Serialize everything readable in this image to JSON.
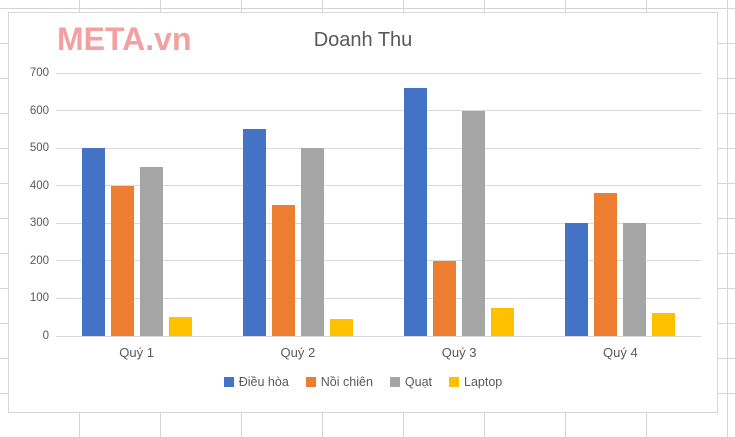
{
  "watermark": {
    "text": "META.vn",
    "color": "#F2A0A0"
  },
  "chart_data": {
    "type": "bar",
    "title": "Doanh Thu",
    "title_color": "#595959",
    "categories": [
      "Quý 1",
      "Quý 2",
      "Quý 3",
      "Quý 4"
    ],
    "series": [
      {
        "name": "Điều hòa",
        "color": "#4472C4",
        "values": [
          500,
          550,
          660,
          300
        ]
      },
      {
        "name": "Nồi chiên",
        "color": "#ED7D31",
        "values": [
          400,
          350,
          200,
          380
        ]
      },
      {
        "name": "Quạt",
        "color": "#A5A5A5",
        "values": [
          450,
          500,
          600,
          300
        ]
      },
      {
        "name": "Laptop",
        "color": "#FFC000",
        "values": [
          50,
          45,
          75,
          60
        ]
      }
    ],
    "ylim": [
      0,
      700
    ],
    "yticks": [
      0,
      100,
      200,
      300,
      400,
      500,
      600,
      700
    ],
    "grid": true,
    "gridline_color": "#D9D9D9",
    "axis_label_color": "#595959",
    "legend_position": "bottom"
  }
}
